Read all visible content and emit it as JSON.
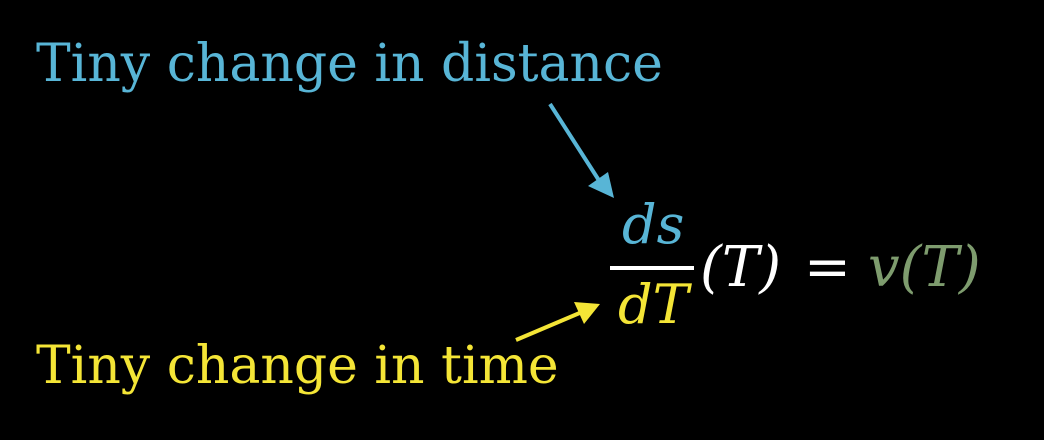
{
  "labels": {
    "distance": "Tiny change in distance",
    "time": "Tiny change in time"
  },
  "equation": {
    "numerator": "ds",
    "denominator": "dT",
    "argument": "(T)",
    "equals": "=",
    "rhs": "v(T)"
  },
  "colors": {
    "background": "#000000",
    "distance": "#58b5d6",
    "time": "#f4e536",
    "equation_text": "#ffffff",
    "velocity": "#7e9c6e"
  }
}
